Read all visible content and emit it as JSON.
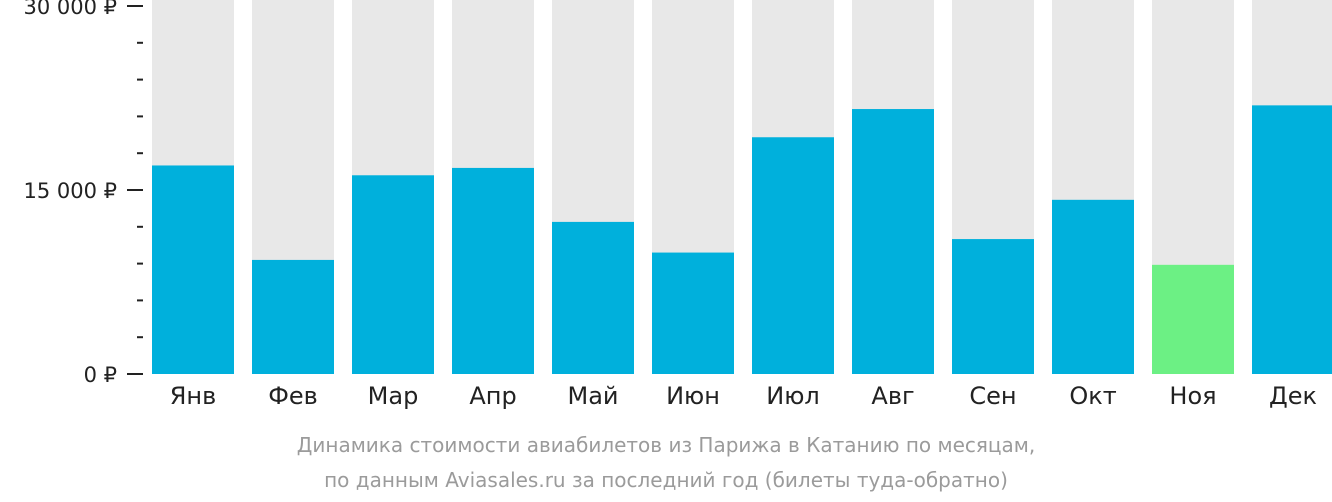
{
  "chart_data": {
    "type": "bar",
    "categories": [
      "Янв",
      "Фев",
      "Мар",
      "Апр",
      "Май",
      "Июн",
      "Июл",
      "Авг",
      "Сен",
      "Окт",
      "Ноя",
      "Дек"
    ],
    "values": [
      17000,
      9300,
      16200,
      16800,
      12400,
      9900,
      19300,
      21600,
      11000,
      14200,
      8900,
      21900
    ],
    "ylim": [
      0,
      30000
    ],
    "yticks": [
      {
        "value": 0,
        "label": "0 ₽"
      },
      {
        "value": 15000,
        "label": "15 000 ₽"
      },
      {
        "value": 30000,
        "label": "30 000 ₽"
      }
    ],
    "minor_tick_step": 3000,
    "highlight_index": 10,
    "grid": false,
    "title": "",
    "xlabel": "",
    "ylabel": "",
    "colors": {
      "bar": "#00b0dc",
      "highlight": "#6cf084",
      "track": "#e8e8e8",
      "axis": "#222222"
    }
  },
  "caption": {
    "line1": "Динамика стоимости авиабилетов из Парижа в Катанию по месяцам,",
    "line2": "по данным Aviasales.ru за последний год (билеты туда-обратно)"
  }
}
